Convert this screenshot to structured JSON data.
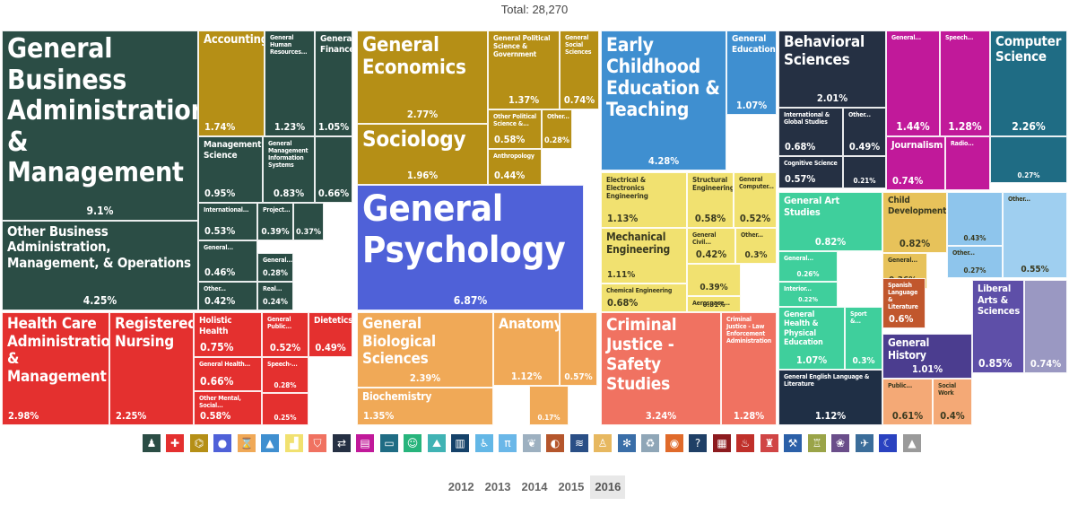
{
  "total_label": "Total: 28,270",
  "years": [
    "2012",
    "2013",
    "2014",
    "2015",
    "2016"
  ],
  "selected_year": "2016",
  "icons": [
    {
      "name": "people-icon",
      "glyph": "♟",
      "color": "#2b4d45"
    },
    {
      "name": "medical-cross-icon",
      "glyph": "✚",
      "color": "#e4302f"
    },
    {
      "name": "chart-icon",
      "glyph": "⌬",
      "color": "#b58f16"
    },
    {
      "name": "speech-bubble-icon",
      "glyph": "●",
      "color": "#4f61d8"
    },
    {
      "name": "hourglass-icon",
      "glyph": "⌛",
      "color": "#f0a957"
    },
    {
      "name": "graduation-cap-icon",
      "glyph": "▲",
      "color": "#3f8fd0"
    },
    {
      "name": "boot-icon",
      "glyph": "▟",
      "color": "#f1e170"
    },
    {
      "name": "shield-icon",
      "glyph": "⛉",
      "color": "#f07261"
    },
    {
      "name": "arrows-icon",
      "glyph": "⇄",
      "color": "#253043"
    },
    {
      "name": "scroll-icon",
      "glyph": "▤",
      "color": "#c1199a"
    },
    {
      "name": "monitor-icon",
      "glyph": "▭",
      "color": "#1f6c84"
    },
    {
      "name": "masks-icon",
      "glyph": "☺",
      "color": "#27b47c"
    },
    {
      "name": "landscape-icon",
      "glyph": "⛰",
      "color": "#40b3b4"
    },
    {
      "name": "book-icon",
      "glyph": "▥",
      "color": "#15426a"
    },
    {
      "name": "wheelchair-icon",
      "glyph": "♿",
      "color": "#63b7e6"
    },
    {
      "name": "pi-icon",
      "glyph": "π",
      "color": "#6ab7e8"
    },
    {
      "name": "leaf-icon",
      "glyph": "❦",
      "color": "#9db0c0"
    },
    {
      "name": "pills-icon",
      "glyph": "◐",
      "color": "#b5562c"
    },
    {
      "name": "graph-icon",
      "glyph": "≋",
      "color": "#2a4f86"
    },
    {
      "name": "family-icon",
      "glyph": "♙",
      "color": "#e7b860"
    },
    {
      "name": "atom-icon",
      "glyph": "✻",
      "color": "#3a6ea8"
    },
    {
      "name": "recycle-icon",
      "glyph": "♻",
      "color": "#8fa6b7"
    },
    {
      "name": "globe-icon",
      "glyph": "◉",
      "color": "#e06a2a"
    },
    {
      "name": "question-icon",
      "glyph": "?",
      "color": "#1f3f66"
    },
    {
      "name": "building-icon",
      "glyph": "▦",
      "color": "#8d1b1f"
    },
    {
      "name": "utensils-icon",
      "glyph": "♨",
      "color": "#c0302a"
    },
    {
      "name": "antenna-icon",
      "glyph": "♜",
      "color": "#d04545"
    },
    {
      "name": "gavel-icon",
      "glyph": "⚒",
      "color": "#2b60a8"
    },
    {
      "name": "podium-icon",
      "glyph": "♖",
      "color": "#9aa448"
    },
    {
      "name": "network-icon",
      "glyph": "❀",
      "color": "#6a4e8a"
    },
    {
      "name": "airplane-icon",
      "glyph": "✈",
      "color": "#3b6d9a"
    },
    {
      "name": "moon-icon",
      "glyph": "☾",
      "color": "#2a42c0"
    },
    {
      "name": "cone-icon",
      "glyph": "▲",
      "color": "#9a9a9a"
    }
  ],
  "chart_data": {
    "type": "treemap",
    "title": "Total: 28,270",
    "total": 28270,
    "unit": "%",
    "groups": [
      {
        "name": "Business",
        "color": "#2b4d45"
      },
      {
        "name": "Health",
        "color": "#e4302f"
      },
      {
        "name": "Social Sciences",
        "color": "#b58f16"
      },
      {
        "name": "Psychology",
        "color": "#4f61d8"
      },
      {
        "name": "Biology",
        "color": "#f0a957"
      },
      {
        "name": "Education",
        "color": "#3f8fd0"
      },
      {
        "name": "Engineering",
        "color": "#f1e170"
      },
      {
        "name": "Law & Public Policy",
        "color": "#f07261"
      },
      {
        "name": "Interdisciplinary",
        "color": "#253043"
      },
      {
        "name": "Communications",
        "color": "#c1199a"
      },
      {
        "name": "Computers",
        "color": "#1f6c84"
      },
      {
        "name": "Arts",
        "color": "#27b47c"
      },
      {
        "name": "Humanities",
        "color": "#40b3b4"
      }
    ],
    "items": [
      {
        "label": "General Business Administration & Management",
        "value": 9.1,
        "value_label": "9.1%"
      },
      {
        "label": "Other Business Administration, Management, & Operations",
        "value": 4.25,
        "value_label": "4.25%"
      },
      {
        "label": "Accounting",
        "value": 1.74,
        "value_label": "1.74%"
      },
      {
        "label": "General Human Resources...",
        "value": 1.23,
        "value_label": "1.23%"
      },
      {
        "label": "General Finance",
        "value": 1.05,
        "value_label": "1.05%"
      },
      {
        "label": "Management Science",
        "value": 0.95,
        "value_label": "0.95%"
      },
      {
        "label": "General Management Information Systems",
        "value": 0.83,
        "value_label": "0.83%"
      },
      {
        "label": "",
        "value": 0.66,
        "value_label": "0.66%"
      },
      {
        "label": "International...",
        "value": 0.53,
        "value_label": "0.53%"
      },
      {
        "label": "Project...",
        "value": 0.39,
        "value_label": "0.39%"
      },
      {
        "label": "",
        "value": 0.37,
        "value_label": "0.37%"
      },
      {
        "label": "General...",
        "value": 0.46,
        "value_label": "0.46%"
      },
      {
        "label": "General...",
        "value": 0.28,
        "value_label": "0.28%"
      },
      {
        "label": "Other...",
        "value": 0.42,
        "value_label": "0.42%"
      },
      {
        "label": "Real...",
        "value": 0.24,
        "value_label": "0.24%"
      },
      {
        "label": "Health Care Administration & Management",
        "value": 2.98,
        "value_label": "2.98%"
      },
      {
        "label": "Registered Nursing",
        "value": 2.25,
        "value_label": "2.25%"
      },
      {
        "label": "Holistic Health",
        "value": 0.75,
        "value_label": "0.75%"
      },
      {
        "label": "General Health...",
        "value": 0.66,
        "value_label": "0.66%"
      },
      {
        "label": "Other Mental, Social...",
        "value": 0.58,
        "value_label": "0.58%"
      },
      {
        "label": "General Public...",
        "value": 0.52,
        "value_label": "0.52%"
      },
      {
        "label": "Dietetics",
        "value": 0.49,
        "value_label": "0.49%"
      },
      {
        "label": "Speech-...",
        "value": 0.28,
        "value_label": "0.28%"
      },
      {
        "label": "",
        "value": 0.25,
        "value_label": "0.25%"
      },
      {
        "label": "General Economics",
        "value": 2.77,
        "value_label": "2.77%"
      },
      {
        "label": "Sociology",
        "value": 1.96,
        "value_label": "1.96%"
      },
      {
        "label": "General Political Science & Government",
        "value": 1.37,
        "value_label": "1.37%"
      },
      {
        "label": "General Social Sciences",
        "value": 0.74,
        "value_label": "0.74%"
      },
      {
        "label": "Other Political Science &...",
        "value": 0.58,
        "value_label": "0.58%"
      },
      {
        "label": "Other...",
        "value": 0.28,
        "value_label": "0.28%"
      },
      {
        "label": "Anthropology",
        "value": 0.44,
        "value_label": "0.44%"
      },
      {
        "label": "General Psychology",
        "value": 6.87,
        "value_label": "6.87%"
      },
      {
        "label": "General Biological Sciences",
        "value": 2.39,
        "value_label": "2.39%"
      },
      {
        "label": "Biochemistry",
        "value": 1.35,
        "value_label": "1.35%"
      },
      {
        "label": "Anatomy",
        "value": 1.12,
        "value_label": "1.12%"
      },
      {
        "label": "",
        "value": 0.57,
        "value_label": "0.57%"
      },
      {
        "label": "",
        "value": 0.17,
        "value_label": "0.17%"
      },
      {
        "label": "Early Childhood Education & Teaching",
        "value": 4.28,
        "value_label": "4.28%"
      },
      {
        "label": "General Education",
        "value": 1.07,
        "value_label": "1.07%"
      },
      {
        "label": "Electrical & Electronics Engineering",
        "value": 1.13,
        "value_label": "1.13%"
      },
      {
        "label": "Structural Engineering",
        "value": 0.58,
        "value_label": "0.58%"
      },
      {
        "label": "General Computer...",
        "value": 0.52,
        "value_label": "0.52%"
      },
      {
        "label": "Mechanical Engineering",
        "value": 1.11,
        "value_label": "1.11%"
      },
      {
        "label": "General Civil...",
        "value": 0.42,
        "value_label": "0.42%"
      },
      {
        "label": "Other...",
        "value": 0.3,
        "value_label": "0.3%"
      },
      {
        "label": "",
        "value": 0.39,
        "value_label": "0.39%"
      },
      {
        "label": "Chemical Engineering",
        "value": 0.68,
        "value_label": "0.68%"
      },
      {
        "label": "Aerospace...",
        "value": 0.31,
        "value_label": "0.31%"
      },
      {
        "label": "Criminal Justice - Safety Studies",
        "value": 3.24,
        "value_label": "3.24%"
      },
      {
        "label": "Criminal Justice - Law Enforcement Administration",
        "value": 1.28,
        "value_label": "1.28%"
      },
      {
        "label": "Behavioral Sciences",
        "value": 2.01,
        "value_label": "2.01%"
      },
      {
        "label": "International & Global Studies",
        "value": 0.68,
        "value_label": "0.68%"
      },
      {
        "label": "Other...",
        "value": 0.49,
        "value_label": "0.49%"
      },
      {
        "label": "Cognitive Science",
        "value": 0.57,
        "value_label": "0.57%"
      },
      {
        "label": "",
        "value": 0.21,
        "value_label": "0.21%"
      },
      {
        "label": "General...",
        "value": 1.44,
        "value_label": "1.44%"
      },
      {
        "label": "Speech...",
        "value": 1.28,
        "value_label": "1.28%"
      },
      {
        "label": "Journalism",
        "value": 0.74,
        "value_label": "0.74%"
      },
      {
        "label": "Radio...",
        "value": null,
        "value_label": ""
      },
      {
        "label": "Computer Science",
        "value": 2.26,
        "value_label": "2.26%"
      },
      {
        "label": "",
        "value": 0.27,
        "value_label": "0.27%"
      },
      {
        "label": "General Art Studies",
        "value": 0.82,
        "value_label": "0.82%"
      },
      {
        "label": "General...",
        "value": 0.26,
        "value_label": "0.26%"
      },
      {
        "label": "Interior...",
        "value": 0.22,
        "value_label": "0.22%"
      },
      {
        "label": "General Health & Physical Education",
        "value": 1.07,
        "value_label": "1.07%"
      },
      {
        "label": "Sport &...",
        "value": 0.3,
        "value_label": "0.3%"
      },
      {
        "label": "General English Language & Literature",
        "value": 1.12,
        "value_label": "1.12%"
      },
      {
        "label": "Child Development",
        "value": 0.82,
        "value_label": "0.82%"
      },
      {
        "label": "General...",
        "value": 0.36,
        "value_label": "0.36%"
      },
      {
        "label": "",
        "value": 0.43,
        "value_label": "0.43%"
      },
      {
        "label": "Other...",
        "value": 0.27,
        "value_label": "0.27%"
      },
      {
        "label": "Other...",
        "value": 0.55,
        "value_label": "0.55%"
      },
      {
        "label": "Spanish Language & Literature",
        "value": 0.6,
        "value_label": "0.6%"
      },
      {
        "label": "Liberal Arts & Sciences",
        "value": 0.85,
        "value_label": "0.85%"
      },
      {
        "label": "",
        "value": 0.74,
        "value_label": "0.74%"
      },
      {
        "label": "General History",
        "value": 1.01,
        "value_label": "1.01%"
      },
      {
        "label": "Public...",
        "value": 0.61,
        "value_label": "0.61%"
      },
      {
        "label": "Social Work",
        "value": 0.4,
        "value_label": "0.4%"
      }
    ]
  }
}
